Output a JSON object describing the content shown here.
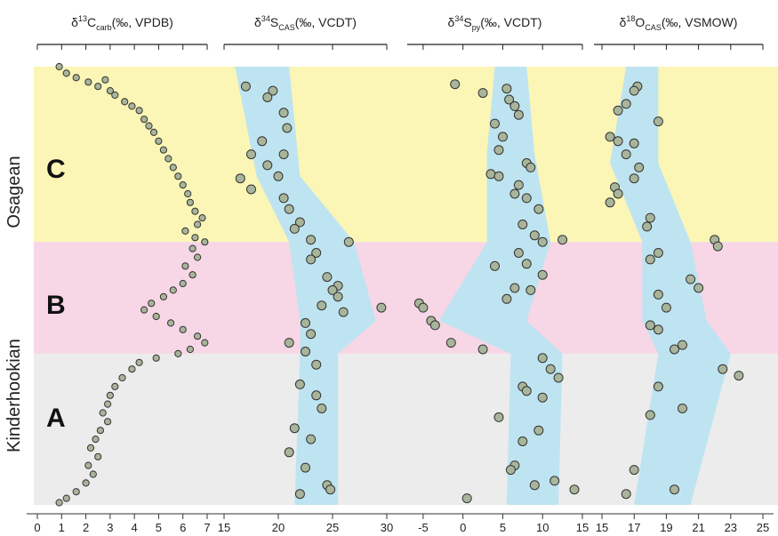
{
  "colors": {
    "zone_C": "#fbf6b6",
    "zone_B": "#f7d6e6",
    "zone_A": "#ececec",
    "envelope": "#bfe4f1",
    "marker_fill": "#a9b59a",
    "marker_stroke": "#333333"
  },
  "chart_data": [
    {
      "type": "scatter",
      "title": "δ13Ccarb (‰, VPDB)",
      "xlim": [
        0,
        7
      ],
      "x_ticks": [
        0,
        1,
        2,
        3,
        4,
        5,
        6,
        7
      ],
      "ylabel": "",
      "y_meaning": "relative stratigraphic position, 0 = base, 1 = top",
      "zones": [
        {
          "name": "A",
          "from": 0,
          "to": 0.345
        },
        {
          "name": "B",
          "from": 0.345,
          "to": 0.6
        },
        {
          "name": "C",
          "from": 0.6,
          "to": 1
        }
      ],
      "stages": [
        {
          "name": "Kinderhookian",
          "from": 0,
          "to": 0.6
        },
        {
          "name": "Osagean",
          "from": 0.6,
          "to": 1
        }
      ],
      "points": [
        [
          0.9,
          1.0
        ],
        [
          1.2,
          0.985
        ],
        [
          1.6,
          0.975
        ],
        [
          2.1,
          0.965
        ],
        [
          2.5,
          0.955
        ],
        [
          2.8,
          0.97
        ],
        [
          3.0,
          0.945
        ],
        [
          3.2,
          0.935
        ],
        [
          3.6,
          0.92
        ],
        [
          3.9,
          0.91
        ],
        [
          4.2,
          0.9
        ],
        [
          4.4,
          0.88
        ],
        [
          4.6,
          0.865
        ],
        [
          4.8,
          0.85
        ],
        [
          5.0,
          0.83
        ],
        [
          5.2,
          0.81
        ],
        [
          5.4,
          0.79
        ],
        [
          5.6,
          0.77
        ],
        [
          5.8,
          0.75
        ],
        [
          6.0,
          0.73
        ],
        [
          6.2,
          0.71
        ],
        [
          6.3,
          0.69
        ],
        [
          6.5,
          0.67
        ],
        [
          6.8,
          0.655
        ],
        [
          6.6,
          0.64
        ],
        [
          6.1,
          0.625
        ],
        [
          6.5,
          0.61
        ],
        [
          6.9,
          0.6
        ],
        [
          6.4,
          0.585
        ],
        [
          6.6,
          0.565
        ],
        [
          6.1,
          0.545
        ],
        [
          6.4,
          0.525
        ],
        [
          6.0,
          0.505
        ],
        [
          5.6,
          0.49
        ],
        [
          5.2,
          0.475
        ],
        [
          4.7,
          0.46
        ],
        [
          4.4,
          0.445
        ],
        [
          4.9,
          0.43
        ],
        [
          5.5,
          0.415
        ],
        [
          6.0,
          0.4
        ],
        [
          6.6,
          0.385
        ],
        [
          6.9,
          0.37
        ],
        [
          6.3,
          0.355
        ],
        [
          5.8,
          0.345
        ],
        [
          4.9,
          0.335
        ],
        [
          4.2,
          0.325
        ],
        [
          3.9,
          0.31
        ],
        [
          3.5,
          0.29
        ],
        [
          3.2,
          0.27
        ],
        [
          3.0,
          0.25
        ],
        [
          2.9,
          0.23
        ],
        [
          2.7,
          0.21
        ],
        [
          2.9,
          0.19
        ],
        [
          2.6,
          0.17
        ],
        [
          2.4,
          0.15
        ],
        [
          2.2,
          0.13
        ],
        [
          2.5,
          0.11
        ],
        [
          2.1,
          0.09
        ],
        [
          2.3,
          0.07
        ],
        [
          2.0,
          0.05
        ],
        [
          1.6,
          0.03
        ],
        [
          1.2,
          0.015
        ],
        [
          0.9,
          0.005
        ]
      ]
    },
    {
      "type": "scatter",
      "title": "δ34SCAS (‰, VCDT)",
      "xlim": [
        15,
        30
      ],
      "x_ticks": [
        15,
        20,
        25,
        30
      ],
      "envelope": [
        [
          0,
          21.5,
          25.5
        ],
        [
          0.345,
          22,
          25.5
        ],
        [
          0.42,
          22,
          29
        ],
        [
          0.6,
          21,
          27
        ],
        [
          0.75,
          18,
          22
        ],
        [
          1,
          16,
          21
        ]
      ],
      "points": [
        [
          17.0,
          0.955
        ],
        [
          19.5,
          0.945
        ],
        [
          19.0,
          0.93
        ],
        [
          20.5,
          0.895
        ],
        [
          20.8,
          0.86
        ],
        [
          18.5,
          0.83
        ],
        [
          17.5,
          0.8
        ],
        [
          20.5,
          0.8
        ],
        [
          19.0,
          0.775
        ],
        [
          16.5,
          0.745
        ],
        [
          20.0,
          0.75
        ],
        [
          17.5,
          0.72
        ],
        [
          20.5,
          0.7
        ],
        [
          21.0,
          0.675
        ],
        [
          22.0,
          0.645
        ],
        [
          21.5,
          0.63
        ],
        [
          23.0,
          0.605
        ],
        [
          26.5,
          0.6
        ],
        [
          23.5,
          0.575
        ],
        [
          23.0,
          0.56
        ],
        [
          24.5,
          0.52
        ],
        [
          25.5,
          0.5
        ],
        [
          25.0,
          0.49
        ],
        [
          25.5,
          0.475
        ],
        [
          24.0,
          0.455
        ],
        [
          26.0,
          0.44
        ],
        [
          29.5,
          0.45
        ],
        [
          22.5,
          0.415
        ],
        [
          23.0,
          0.39
        ],
        [
          21.0,
          0.37
        ],
        [
          22.5,
          0.35
        ],
        [
          23.5,
          0.32
        ],
        [
          22.0,
          0.275
        ],
        [
          23.5,
          0.25
        ],
        [
          24.0,
          0.22
        ],
        [
          21.5,
          0.175
        ],
        [
          23.0,
          0.15
        ],
        [
          21.0,
          0.12
        ],
        [
          22.5,
          0.085
        ],
        [
          24.5,
          0.045
        ],
        [
          24.8,
          0.035
        ],
        [
          22.0,
          0.025
        ]
      ]
    },
    {
      "type": "scatter",
      "title": "δ34Spy (‰, VCDT)",
      "xlim": [
        -7,
        15
      ],
      "x_ticks": [
        -5,
        0,
        5,
        10,
        15
      ],
      "envelope": [
        [
          0,
          5.5,
          12
        ],
        [
          0.345,
          6,
          12.5
        ],
        [
          0.42,
          -3,
          8
        ],
        [
          0.6,
          3,
          11
        ],
        [
          0.8,
          3,
          9
        ],
        [
          1,
          4,
          8
        ]
      ],
      "points": [
        [
          -1.0,
          0.96
        ],
        [
          5.5,
          0.95
        ],
        [
          2.5,
          0.94
        ],
        [
          5.8,
          0.925
        ],
        [
          6.5,
          0.91
        ],
        [
          7.0,
          0.89
        ],
        [
          4.0,
          0.87
        ],
        [
          5.0,
          0.84
        ],
        [
          4.5,
          0.81
        ],
        [
          8.0,
          0.78
        ],
        [
          8.5,
          0.77
        ],
        [
          3.5,
          0.755
        ],
        [
          4.5,
          0.75
        ],
        [
          7.0,
          0.73
        ],
        [
          6.5,
          0.71
        ],
        [
          8.0,
          0.7
        ],
        [
          9.5,
          0.675
        ],
        [
          7.5,
          0.64
        ],
        [
          9.0,
          0.615
        ],
        [
          12.5,
          0.605
        ],
        [
          10.0,
          0.6
        ],
        [
          7.0,
          0.575
        ],
        [
          8.0,
          0.55
        ],
        [
          4.0,
          0.545
        ],
        [
          10.0,
          0.525
        ],
        [
          6.5,
          0.495
        ],
        [
          8.5,
          0.49
        ],
        [
          5.5,
          0.47
        ],
        [
          -5.5,
          0.46
        ],
        [
          -5.0,
          0.45
        ],
        [
          -4.0,
          0.42
        ],
        [
          -3.5,
          0.41
        ],
        [
          -1.5,
          0.37
        ],
        [
          2.5,
          0.355
        ],
        [
          10.0,
          0.335
        ],
        [
          11.0,
          0.31
        ],
        [
          12.0,
          0.29
        ],
        [
          7.5,
          0.27
        ],
        [
          8.0,
          0.26
        ],
        [
          10.0,
          0.245
        ],
        [
          4.5,
          0.2
        ],
        [
          9.5,
          0.17
        ],
        [
          7.5,
          0.145
        ],
        [
          6.5,
          0.09
        ],
        [
          6.0,
          0.08
        ],
        [
          11.5,
          0.055
        ],
        [
          9.0,
          0.045
        ],
        [
          14.0,
          0.035
        ],
        [
          0.5,
          0.015
        ]
      ]
    },
    {
      "type": "scatter",
      "title": "δ18OCAS (‰, VSMOW)",
      "xlim": [
        14.5,
        25
      ],
      "x_ticks": [
        15,
        17,
        19,
        21,
        23,
        25
      ],
      "envelope": [
        [
          0,
          17,
          20.5
        ],
        [
          0.345,
          18.5,
          23
        ],
        [
          0.42,
          17.5,
          21.5
        ],
        [
          0.6,
          17.5,
          20.5
        ],
        [
          0.78,
          15.5,
          18.5
        ],
        [
          1,
          16.5,
          18.5
        ]
      ],
      "points": [
        [
          17.2,
          0.955
        ],
        [
          17.0,
          0.945
        ],
        [
          16.5,
          0.915
        ],
        [
          16.0,
          0.9
        ],
        [
          18.5,
          0.875
        ],
        [
          15.5,
          0.84
        ],
        [
          16.0,
          0.83
        ],
        [
          17.0,
          0.825
        ],
        [
          16.5,
          0.8
        ],
        [
          17.3,
          0.77
        ],
        [
          17.0,
          0.745
        ],
        [
          15.8,
          0.725
        ],
        [
          16.0,
          0.71
        ],
        [
          15.5,
          0.69
        ],
        [
          18.0,
          0.655
        ],
        [
          17.8,
          0.635
        ],
        [
          22.0,
          0.605
        ],
        [
          22.2,
          0.59
        ],
        [
          18.5,
          0.575
        ],
        [
          18.0,
          0.56
        ],
        [
          20.5,
          0.515
        ],
        [
          21.0,
          0.495
        ],
        [
          18.5,
          0.48
        ],
        [
          19.0,
          0.45
        ],
        [
          18.0,
          0.41
        ],
        [
          18.5,
          0.4
        ],
        [
          20.0,
          0.365
        ],
        [
          19.5,
          0.355
        ],
        [
          22.5,
          0.31
        ],
        [
          23.5,
          0.295
        ],
        [
          18.5,
          0.27
        ],
        [
          20.0,
          0.22
        ],
        [
          18.0,
          0.205
        ],
        [
          17.0,
          0.08
        ],
        [
          19.5,
          0.035
        ],
        [
          16.5,
          0.025
        ]
      ]
    }
  ],
  "stage_labels": {
    "upper": "Osagean",
    "lower": "Kinderhookian"
  },
  "zone_labels": {
    "C": "C",
    "B": "B",
    "A": "A"
  },
  "axis_titles": [
    {
      "base": "δ",
      "sup": "13",
      "main": "C",
      "sub": "carb",
      "rest": "(‰, VPDB)"
    },
    {
      "base": "δ",
      "sup": "34",
      "main": "S",
      "sub": "CAS",
      "rest": "(‰, VCDT)"
    },
    {
      "base": "δ",
      "sup": "34",
      "main": "S",
      "sub": "py",
      "rest": "(‰, VCDT)"
    },
    {
      "base": "δ",
      "sup": "18",
      "main": "O",
      "sub": "CAS",
      "rest": "(‰, VSMOW)"
    }
  ]
}
